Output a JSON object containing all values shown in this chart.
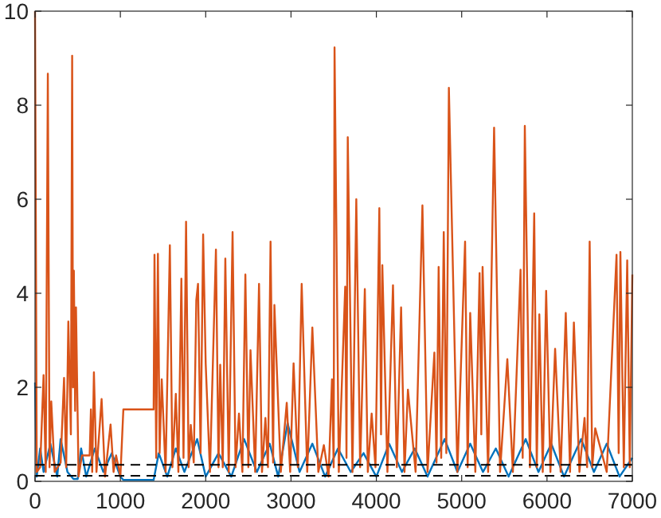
{
  "chart_data": {
    "type": "line",
    "xlim": [
      0,
      7000
    ],
    "ylim": [
      0,
      10
    ],
    "xticks": [
      0,
      1000,
      2000,
      3000,
      4000,
      5000,
      6000,
      7000
    ],
    "yticks": [
      0,
      2,
      4,
      6,
      8,
      10
    ],
    "grid": false,
    "line_style": "solid",
    "series": [
      {
        "color": "#0072bd",
        "x": [
          0,
          20,
          60,
          100,
          180,
          260,
          300,
          380,
          450,
          500,
          540,
          600,
          700,
          800,
          900,
          1000,
          1035,
          1390,
          1450,
          1550,
          1650,
          1750,
          1900,
          2000,
          2150,
          2300,
          2450,
          2600,
          2750,
          2850,
          2960,
          3100,
          3250,
          3400,
          3550,
          3700,
          3850,
          4000,
          4150,
          4300,
          4450,
          4600,
          4800,
          4950,
          5100,
          5250,
          5400,
          5550,
          5750,
          5900,
          6050,
          6200,
          6400,
          6550,
          6700,
          6850,
          7000
        ],
        "values": [
          2.1,
          0.1,
          0.7,
          0.2,
          0.8,
          0.1,
          0.9,
          0.2,
          0.05,
          0.05,
          0.7,
          0.1,
          0.7,
          0.2,
          0.6,
          0.1,
          0.03,
          0.03,
          0.6,
          0.1,
          0.7,
          0.2,
          0.9,
          0.1,
          0.6,
          0.1,
          0.9,
          0.2,
          0.8,
          0.1,
          1.24,
          0.2,
          0.8,
          0.1,
          0.7,
          0.2,
          0.6,
          0.1,
          0.8,
          0.2,
          0.7,
          0.1,
          0.9,
          0.2,
          0.8,
          0.2,
          0.7,
          0.1,
          0.9,
          0.2,
          0.8,
          0.1,
          0.9,
          0.2,
          0.8,
          0.1,
          0.5
        ]
      },
      {
        "color": "#d95319",
        "x": [
          0,
          20,
          60,
          100,
          125,
          150,
          170,
          190,
          230,
          300,
          340,
          365,
          390,
          420,
          435,
          445,
          455,
          470,
          480,
          510,
          550,
          640,
          655,
          670,
          690,
          720,
          780,
          820,
          885,
          920,
          950,
          1000,
          1035,
          1390,
          1400,
          1420,
          1440,
          1460,
          1485,
          1530,
          1580,
          1610,
          1650,
          1680,
          1715,
          1740,
          1770,
          1800,
          1825,
          1860,
          1890,
          1910,
          1940,
          1970,
          2000,
          2050,
          2120,
          2150,
          2170,
          2200,
          2230,
          2270,
          2315,
          2350,
          2390,
          2430,
          2465,
          2500,
          2525,
          2580,
          2625,
          2660,
          2700,
          2730,
          2760,
          2790,
          2805,
          2880,
          2950,
          2990,
          3030,
          3080,
          3125,
          3190,
          3250,
          3320,
          3385,
          3440,
          3480,
          3500,
          3510,
          3560,
          3635,
          3650,
          3665,
          3720,
          3765,
          3810,
          3865,
          3900,
          3945,
          3990,
          4035,
          4055,
          4070,
          4130,
          4195,
          4240,
          4290,
          4330,
          4370,
          4460,
          4540,
          4600,
          4680,
          4705,
          4730,
          4760,
          4790,
          4820,
          4850,
          4950,
          5040,
          5070,
          5100,
          5160,
          5210,
          5230,
          5245,
          5310,
          5380,
          5450,
          5535,
          5600,
          5690,
          5715,
          5740,
          5800,
          5850,
          5880,
          5910,
          5950,
          5990,
          6040,
          6095,
          6160,
          6220,
          6270,
          6315,
          6380,
          6440,
          6470,
          6500,
          6530,
          6565,
          6700,
          6815,
          6840,
          6860,
          6900,
          6940,
          6970,
          7000
        ],
        "values": [
          10,
          0.2,
          0.3,
          2.26,
          0.2,
          8.67,
          0.3,
          1.7,
          0.2,
          0.4,
          2.2,
          0.3,
          3.4,
          1.0,
          9.05,
          2.0,
          4.48,
          1.5,
          3.7,
          0.1,
          0.55,
          0.55,
          1.53,
          0.2,
          2.32,
          0.2,
          1.75,
          0.1,
          1.21,
          0.2,
          0.55,
          0.1,
          1.53,
          1.53,
          4.82,
          0.5,
          4.84,
          0.6,
          2.17,
          0.2,
          5.02,
          0.3,
          1.86,
          0.2,
          4.31,
          0.5,
          5.52,
          0.3,
          1.2,
          0.4,
          3.86,
          4.2,
          0.6,
          5.25,
          2.5,
          0.2,
          4.93,
          0.3,
          2.48,
          0.3,
          4.74,
          0.2,
          5.3,
          0.3,
          1.44,
          0.2,
          4.4,
          0.3,
          2.79,
          0.2,
          4.2,
          0.2,
          1.35,
          0.3,
          5.1,
          0.4,
          3.75,
          0.2,
          1.67,
          0.2,
          2.51,
          0.3,
          4.2,
          0.2,
          3.27,
          0.2,
          0.77,
          0.1,
          2.17,
          0.3,
          9.23,
          0.2,
          4.14,
          0.5,
          7.32,
          0.2,
          6.0,
          0.3,
          4.09,
          0.2,
          1.44,
          0.3,
          5.81,
          1.0,
          4.6,
          0.2,
          4.17,
          0.3,
          3.7,
          0.2,
          1.95,
          0.2,
          5.87,
          0.2,
          2.74,
          0.4,
          4.56,
          0.5,
          5.3,
          0.6,
          8.37,
          0.2,
          5.1,
          0.3,
          3.58,
          0.2,
          4.43,
          1.0,
          4.56,
          0.2,
          7.52,
          0.2,
          2.6,
          0.2,
          4.5,
          0.5,
          7.56,
          0.3,
          5.7,
          0.3,
          3.55,
          0.2,
          4.05,
          0.2,
          2.82,
          0.2,
          3.58,
          0.2,
          3.38,
          0.2,
          1.35,
          0.3,
          5.1,
          0.3,
          1.13,
          0.2,
          4.82,
          0.6,
          4.88,
          0.3,
          4.7,
          0.3,
          4.4
        ]
      }
    ],
    "ref_lines": [
      {
        "axis": "y",
        "value": 0.35,
        "color": "#000000",
        "line_style": "dashed"
      },
      {
        "axis": "y",
        "value": 0.12,
        "color": "#000000",
        "line_style": "dashed"
      }
    ]
  }
}
